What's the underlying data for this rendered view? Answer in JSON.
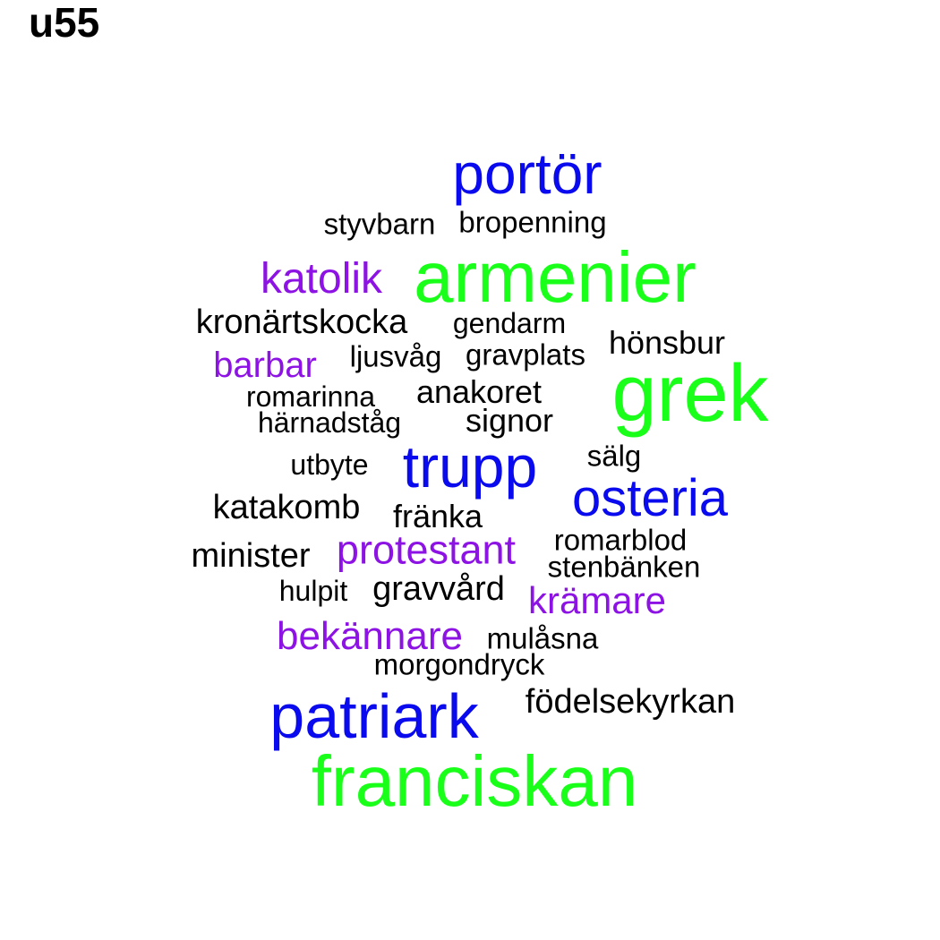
{
  "title": "u55",
  "colors": {
    "green": "#19ff19",
    "blue": "#0a0aee",
    "purple": "#8d13e5",
    "black": "#000000"
  },
  "words": [
    {
      "text": "portör",
      "color": "blue"
    },
    {
      "text": "styvbarn",
      "color": "black"
    },
    {
      "text": "bropenning",
      "color": "black"
    },
    {
      "text": "katolik",
      "color": "purple"
    },
    {
      "text": "armenier",
      "color": "green"
    },
    {
      "text": "kronärtskocka",
      "color": "black"
    },
    {
      "text": "gendarm",
      "color": "black"
    },
    {
      "text": "hönsbur",
      "color": "black"
    },
    {
      "text": "barbar",
      "color": "purple"
    },
    {
      "text": "ljusvåg",
      "color": "black"
    },
    {
      "text": "gravplats",
      "color": "black"
    },
    {
      "text": "grek",
      "color": "green"
    },
    {
      "text": "romarinna",
      "color": "black"
    },
    {
      "text": "anakoret",
      "color": "black"
    },
    {
      "text": "härnadståg",
      "color": "black"
    },
    {
      "text": "signor",
      "color": "black"
    },
    {
      "text": "utbyte",
      "color": "black"
    },
    {
      "text": "trupp",
      "color": "blue"
    },
    {
      "text": "sälg",
      "color": "black"
    },
    {
      "text": "osteria",
      "color": "blue"
    },
    {
      "text": "katakomb",
      "color": "black"
    },
    {
      "text": "fränka",
      "color": "black"
    },
    {
      "text": "minister",
      "color": "black"
    },
    {
      "text": "protestant",
      "color": "purple"
    },
    {
      "text": "romarblod",
      "color": "black"
    },
    {
      "text": "stenbänken",
      "color": "black"
    },
    {
      "text": "hulpit",
      "color": "black"
    },
    {
      "text": "gravvård",
      "color": "black"
    },
    {
      "text": "krämare",
      "color": "purple"
    },
    {
      "text": "bekännare",
      "color": "purple"
    },
    {
      "text": "mulåsna",
      "color": "black"
    },
    {
      "text": "morgondryck",
      "color": "black"
    },
    {
      "text": "patriark",
      "color": "blue"
    },
    {
      "text": "födelsekyrkan",
      "color": "black"
    },
    {
      "text": "franciskan",
      "color": "green"
    }
  ]
}
